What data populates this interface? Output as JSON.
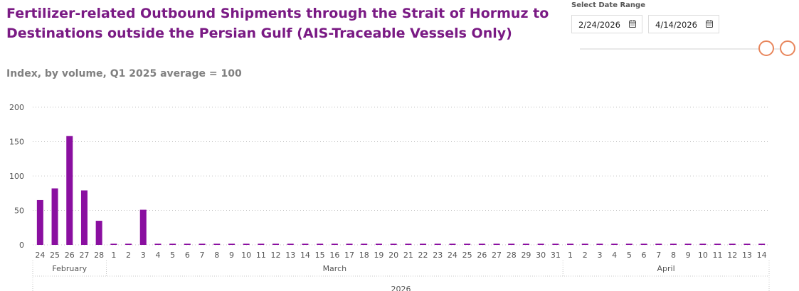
{
  "chart_data": {
    "type": "bar",
    "title": "Fertilizer-related Outbound Shipments through the Strait of Hormuz to Destinations outside the Persian Gulf (AIS-Traceable Vessels Only)",
    "subtitle": "Index, by volume, Q1 2025 average = 100",
    "xlabel": "",
    "ylabel": "",
    "ylim": [
      0,
      200
    ],
    "yticks": [
      "0",
      "50",
      "100",
      "150",
      "200"
    ],
    "grid": true,
    "color": "#8a0fa0",
    "categories": [
      "24",
      "25",
      "26",
      "27",
      "28",
      "1",
      "2",
      "3",
      "4",
      "5",
      "6",
      "7",
      "8",
      "9",
      "10",
      "11",
      "12",
      "13",
      "14",
      "15",
      "16",
      "17",
      "18",
      "19",
      "20",
      "21",
      "22",
      "23",
      "24",
      "25",
      "26",
      "27",
      "28",
      "29",
      "30",
      "31",
      "1",
      "2",
      "3",
      "4",
      "5",
      "6",
      "7",
      "8",
      "9",
      "10",
      "11",
      "12",
      "13",
      "14"
    ],
    "values": [
      65,
      82,
      158,
      79,
      35,
      0,
      0,
      51,
      0,
      0,
      0,
      0,
      0,
      0,
      0,
      0,
      0,
      0,
      0,
      0,
      0,
      0,
      0,
      0,
      0,
      0,
      0,
      0,
      0,
      0,
      0,
      0,
      0,
      0,
      0,
      0,
      0,
      0,
      0,
      0,
      0,
      0,
      0,
      0,
      0,
      0,
      0,
      0,
      0,
      0
    ],
    "months": [
      {
        "label": "February",
        "start": 0,
        "count": 5
      },
      {
        "label": "March",
        "start": 5,
        "count": 31
      },
      {
        "label": "April",
        "start": 36,
        "count": 14
      }
    ],
    "year": "2026"
  },
  "slicer": {
    "label": "Select Date Range",
    "start_date": "2/24/2026",
    "end_date": "4/14/2026",
    "calendar_icon": "calendar-icon"
  }
}
